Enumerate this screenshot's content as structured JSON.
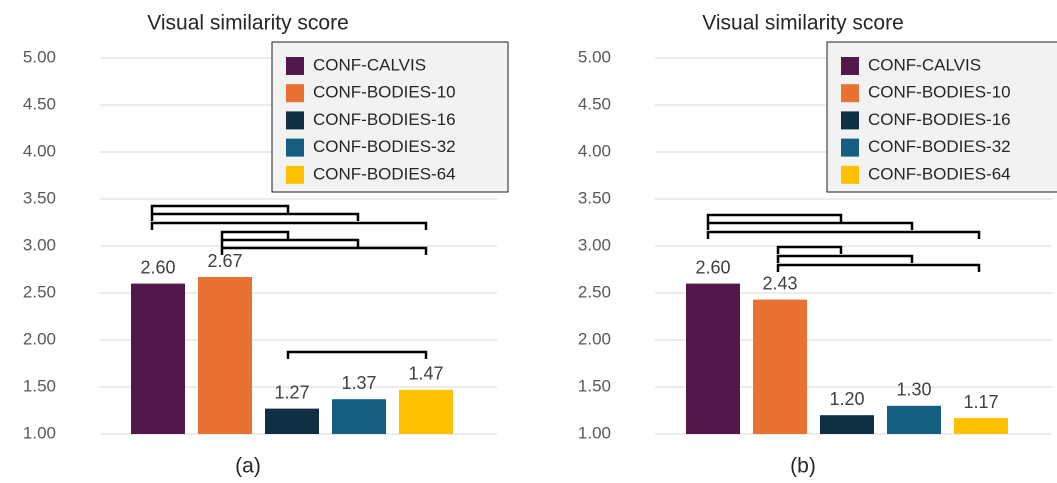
{
  "chart_data": [
    {
      "type": "bar",
      "title": "Visual similarity score",
      "xlabel": "(a)",
      "ylim": [
        1,
        5
      ],
      "yticks": [
        {
          "value": 1,
          "label": "1.00"
        },
        {
          "value": 1.5,
          "label": "1.50"
        },
        {
          "value": 2,
          "label": "2.00"
        },
        {
          "value": 2.5,
          "label": "2.50"
        },
        {
          "value": 3,
          "label": "3.00"
        },
        {
          "value": 3.5,
          "label": "3.50"
        },
        {
          "value": 4,
          "label": "4.00"
        },
        {
          "value": 4.5,
          "label": "4.50"
        },
        {
          "value": 5,
          "label": "5.00"
        }
      ],
      "grid": true,
      "legend": "upper right",
      "series": [
        {
          "name": "CONF-CALVIS",
          "color": "#521849",
          "values": [
            2.6
          ],
          "value_labels": [
            "2.60"
          ]
        },
        {
          "name": "CONF-BODIES-10",
          "color": "#e97132",
          "values": [
            2.67
          ],
          "value_labels": [
            "2.67"
          ]
        },
        {
          "name": "CONF-BODIES-16",
          "color": "#0e2f44",
          "values": [
            1.27
          ],
          "value_labels": [
            "1.27"
          ]
        },
        {
          "name": "CONF-BODIES-32",
          "color": "#156082",
          "values": [
            1.37
          ],
          "value_labels": [
            "1.37"
          ]
        },
        {
          "name": "CONF-BODIES-64",
          "color": "#ffc000",
          "values": [
            1.47
          ],
          "value_labels": [
            "1.47"
          ]
        }
      ]
    },
    {
      "type": "bar",
      "title": "Visual similarity score",
      "xlabel": "(b)",
      "ylim": [
        1,
        5
      ],
      "yticks": [
        {
          "value": 1,
          "label": "1.00"
        },
        {
          "value": 1.5,
          "label": "1.50"
        },
        {
          "value": 2,
          "label": "2.00"
        },
        {
          "value": 2.5,
          "label": "2.50"
        },
        {
          "value": 3,
          "label": "3.00"
        },
        {
          "value": 3.5,
          "label": "3.50"
        },
        {
          "value": 4,
          "label": "4.00"
        },
        {
          "value": 4.5,
          "label": "4.50"
        },
        {
          "value": 5,
          "label": "5.00"
        }
      ],
      "grid": true,
      "legend": "upper right",
      "series": [
        {
          "name": "CONF-CALVIS",
          "color": "#521849",
          "values": [
            2.6
          ],
          "value_labels": [
            "2.60"
          ]
        },
        {
          "name": "CONF-BODIES-10",
          "color": "#e97132",
          "values": [
            2.43
          ],
          "value_labels": [
            "2.43"
          ]
        },
        {
          "name": "CONF-BODIES-16",
          "color": "#0e2f44",
          "values": [
            1.2
          ],
          "value_labels": [
            "1.20"
          ]
        },
        {
          "name": "CONF-BODIES-32",
          "color": "#156082",
          "values": [
            1.3
          ],
          "value_labels": [
            "1.30"
          ]
        },
        {
          "name": "CONF-BODIES-64",
          "color": "#ffc000",
          "values": [
            1.17
          ],
          "value_labels": [
            "1.17"
          ]
        }
      ]
    }
  ]
}
